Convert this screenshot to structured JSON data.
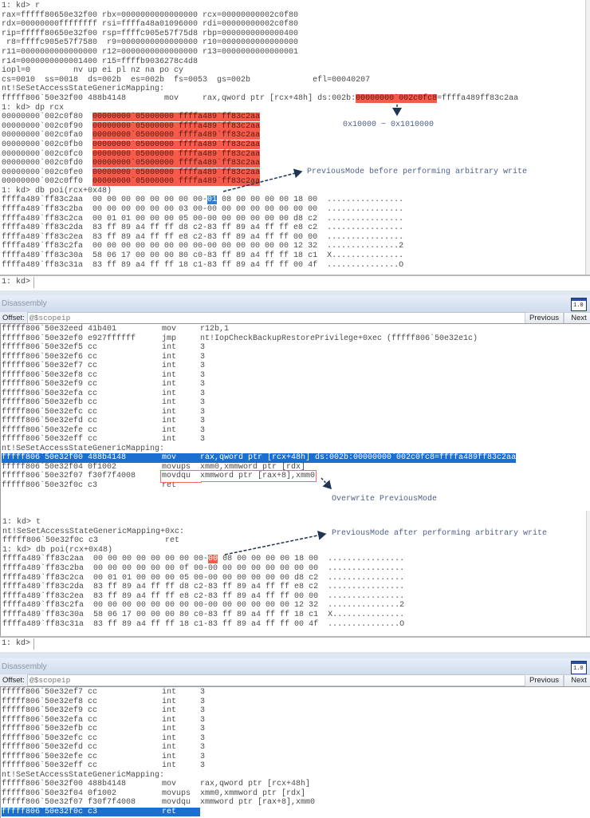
{
  "colors": {
    "highlight_red": "#f55a4b",
    "selection_blue": "#1a6fd0",
    "annotation": "#4e6286",
    "arrow": "#1f3552"
  },
  "cmd1": {
    "prompt": "1: kd>",
    "lines": [
      [
        "1: kd> r"
      ],
      [
        "rax=fffff80650e32f00 rbx=0000000000000000 rcx=00000000002c0f80"
      ],
      [
        "rdx=00000000ffffffff rsi=ffffa48a01096000 rdi=00000000002c0f80"
      ],
      [
        "rip=fffff80650e32f00 rsp=ffffc905e57f75d8 rbp=0000000000000400"
      ],
      [
        " r8=ffffc905e57f7580  r9=0000000000000000 r10=0000000000000000"
      ],
      [
        "r11=0000000000000000 r12=0000000000000000 r13=0000000000000001"
      ],
      [
        "r14=0000000000001400 r15=ffffb9036278c4d8"
      ],
      [
        "iopl=0         nv up ei pl nz na po cy"
      ],
      [
        "cs=0010  ss=0018  ds=002b  es=002b  fs=0053  gs=002b             efl=00040207"
      ],
      [
        "nt!SeSetAccessStateGenericMapping:"
      ],
      [
        "fffff806`50e32f00 488b4148        mov     rax,qword ptr [rcx+48h] ds:002b:",
        {
          "t": "00000000`002c0fc8",
          "hl": "red"
        },
        "=ffffa489ff83c2aa"
      ],
      [
        "1: kd> dp rcx"
      ],
      [
        "00000000`002c0f80  ",
        {
          "t": "00000000`05000000 ffffa489`ff83c2aa",
          "hl": "red"
        }
      ],
      [
        "00000000`002c0f90  ",
        {
          "t": "00000000`05000000 ffffa489`ff83c2aa",
          "hl": "red"
        }
      ],
      [
        "00000000`002c0fa0  ",
        {
          "t": "00000000`05000000 ffffa489`ff83c2aa",
          "hl": "red"
        }
      ],
      [
        "00000000`002c0fb0  ",
        {
          "t": "00000000`05000000 ffffa489`ff83c2aa",
          "hl": "red"
        }
      ],
      [
        "00000000`002c0fc0  ",
        {
          "t": "00000000`05000000 ffffa489`ff83c2aa",
          "hl": "red"
        }
      ],
      [
        "00000000`002c0fd0  ",
        {
          "t": "00000000`05000000 ffffa489`ff83c2aa",
          "hl": "red"
        }
      ],
      [
        "00000000`002c0fe0  ",
        {
          "t": "00000000`05000000 ffffa489`ff83c2aa",
          "hl": "red"
        }
      ],
      [
        "00000000`002c0ff0  ",
        {
          "t": "00000000`05000000 ffffa489`ff83c2aa",
          "hl": "red"
        }
      ],
      [
        "1: kd> db poi(rcx+0x48)"
      ],
      [
        "ffffa489`ff83c2aa  00 00 00 00 00 00 00 00-",
        {
          "t": "01",
          "hl": "blue"
        },
        " 08 00 00 00 00 18 00  ................"
      ],
      [
        "ffffa489`ff83c2ba  00 00 00 00 00 00 03 00-00 00 00 00 00 00 00 00  ................"
      ],
      [
        "ffffa489`ff83c2ca  00 01 01 00 00 00 05 00-00 00 00 00 00 00 d8 c2  ................"
      ],
      [
        "ffffa489`ff83c2da  83 ff 89 a4 ff ff d8 c2-83 ff 89 a4 ff ff e8 c2  ................"
      ],
      [
        "ffffa489`ff83c2ea  83 ff 89 a4 ff ff e8 c2-83 ff 89 a4 ff ff 00 00  ................"
      ],
      [
        "ffffa489`ff83c2fa  00 00 00 00 00 00 00 00-00 00 00 00 00 00 12 32  ...............2"
      ],
      [
        "ffffa489`ff83c30a  58 06 17 00 00 00 80 c0-83 ff 89 a4 ff ff 18 c1  X..............."
      ],
      [
        "ffffa489`ff83c31a  83 ff 89 a4 ff ff 18 c1-83 ff 89 a4 ff ff 00 4f  ...............O"
      ]
    ]
  },
  "annotations": {
    "range": "0x10000 ~ 0x1010000",
    "before": "PreviousMode before performing arbitrary write",
    "overwrite": "Overwrite PreviousMode",
    "after": "PreviousMode after performing arbitrary write"
  },
  "disasm1": {
    "title": "Disassembly",
    "offset_label": "Offset:",
    "offset_value": "@$scopeip",
    "previous": "Previous",
    "next": "Next",
    "icon_text": "1.0",
    "rows": [
      {
        "a": "fffff806`50e32eed 41b401",
        "m": "mov",
        "o": "r12b,1"
      },
      {
        "a": "fffff806`50e32ef0 e927ffffff",
        "m": "jmp",
        "o": "nt!IopCheckBackupRestorePrivilege+0xec (fffff806`50e32e1c)"
      },
      {
        "a": "fffff806`50e32ef5 cc",
        "m": "int",
        "o": "3"
      },
      {
        "a": "fffff806`50e32ef6 cc",
        "m": "int",
        "o": "3"
      },
      {
        "a": "fffff806`50e32ef7 cc",
        "m": "int",
        "o": "3"
      },
      {
        "a": "fffff806`50e32ef8 cc",
        "m": "int",
        "o": "3"
      },
      {
        "a": "fffff806`50e32ef9 cc",
        "m": "int",
        "o": "3"
      },
      {
        "a": "fffff806`50e32efa cc",
        "m": "int",
        "o": "3"
      },
      {
        "a": "fffff806`50e32efb cc",
        "m": "int",
        "o": "3"
      },
      {
        "a": "fffff806`50e32efc cc",
        "m": "int",
        "o": "3"
      },
      {
        "a": "fffff806`50e32efd cc",
        "m": "int",
        "o": "3"
      },
      {
        "a": "fffff806`50e32efe cc",
        "m": "int",
        "o": "3"
      },
      {
        "a": "fffff806`50e32eff cc",
        "m": "int",
        "o": "3"
      },
      {
        "label": "nt!SeSetAccessStateGenericMapping:"
      },
      {
        "a": "fffff806`50e32f00 488b4148",
        "m": "mov",
        "o": "rax,qword ptr [rcx+48h] ds:002b:00000000`002c0fc8=ffffa489ff83c2aa",
        "selected": true
      },
      {
        "a": "fffff806`50e32f04 0f1002",
        "m": "movups",
        "o": "xmm0,xmmword ptr [rdx]"
      },
      {
        "a": "fffff806`50e32f07 f30f7f4008",
        "m": "movdqu",
        "o": "xmmword ptr [rax+8],xmm0",
        "boxed": true
      },
      {
        "a": "fffff806`50e32f0c c3",
        "m": "ret",
        "o": ""
      }
    ]
  },
  "cmd2": {
    "prompt": "1: kd>",
    "lines": [
      [
        "1: kd> t"
      ],
      [
        "nt!SeSetAccessStateGenericMapping+0xc:"
      ],
      [
        "fffff806`50e32f0c c3              ret"
      ],
      [
        "1: kd> db poi(rcx+0x48)"
      ],
      [
        "ffffa489`ff83c2aa  00 00 00 00 00 00 00 00-",
        {
          "t": "00",
          "hl": "redtxt"
        },
        " 08 00 00 00 00 18 00  ................"
      ],
      [
        "ffffa489`ff83c2ba  00 00 00 00 00 00 0f 00-00 00 00 00 00 00 00 00  ................"
      ],
      [
        "ffffa489`ff83c2ca  00 01 01 00 00 00 05 00-00 00 00 00 00 00 d8 c2  ................"
      ],
      [
        "ffffa489`ff83c2da  83 ff 89 a4 ff ff d8 c2-83 ff 89 a4 ff ff e8 c2  ................"
      ],
      [
        "ffffa489`ff83c2ea  83 ff 89 a4 ff ff e8 c2-83 ff 89 a4 ff ff 00 00  ................"
      ],
      [
        "ffffa489`ff83c2fa  00 00 00 00 00 00 00 00-00 00 00 00 00 00 12 32  ...............2"
      ],
      [
        "ffffa489`ff83c30a  58 06 17 00 00 00 80 c0-83 ff 89 a4 ff ff 18 c1  X..............."
      ],
      [
        "ffffa489`ff83c31a  83 ff 89 a4 ff ff 18 c1-83 ff 89 a4 ff ff 00 4f  ...............O"
      ]
    ]
  },
  "disasm2": {
    "title": "Disassembly",
    "offset_label": "Offset:",
    "offset_value": "@$scopeip",
    "previous": "Previous",
    "next": "Next",
    "icon_text": "1.0",
    "rows": [
      {
        "a": "fffff806`50e32ef7 cc",
        "m": "int",
        "o": "3"
      },
      {
        "a": "fffff806`50e32ef8 cc",
        "m": "int",
        "o": "3"
      },
      {
        "a": "fffff806`50e32ef9 cc",
        "m": "int",
        "o": "3"
      },
      {
        "a": "fffff806`50e32efa cc",
        "m": "int",
        "o": "3"
      },
      {
        "a": "fffff806`50e32efb cc",
        "m": "int",
        "o": "3"
      },
      {
        "a": "fffff806`50e32efc cc",
        "m": "int",
        "o": "3"
      },
      {
        "a": "fffff806`50e32efd cc",
        "m": "int",
        "o": "3"
      },
      {
        "a": "fffff806`50e32efe cc",
        "m": "int",
        "o": "3"
      },
      {
        "a": "fffff806`50e32eff cc",
        "m": "int",
        "o": "3"
      },
      {
        "label": "nt!SeSetAccessStateGenericMapping:"
      },
      {
        "a": "fffff806`50e32f00 488b4148",
        "m": "mov",
        "o": "rax,qword ptr [rcx+48h]"
      },
      {
        "a": "fffff806`50e32f04 0f1002",
        "m": "movups",
        "o": "xmm0,xmmword ptr [rdx]"
      },
      {
        "a": "fffff806`50e32f07 f30f7f4008",
        "m": "movdqu",
        "o": "xmmword ptr [rax+8],xmm0"
      },
      {
        "a": "fffff806`50e32f0c c3",
        "m": "ret",
        "o": "",
        "selected": true
      }
    ]
  }
}
